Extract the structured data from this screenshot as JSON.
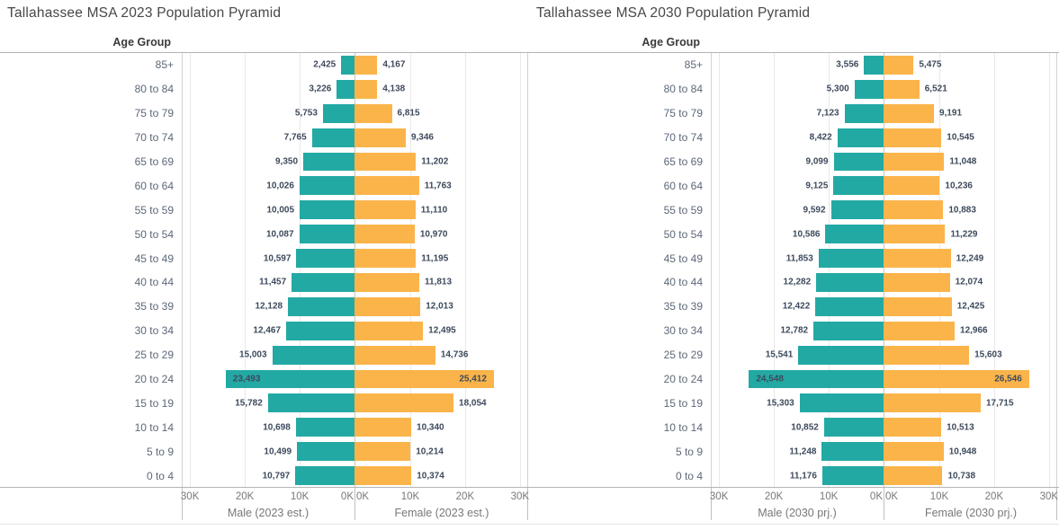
{
  "style": {
    "male_color": "#23A9A4",
    "female_color": "#FBB44A",
    "title_color": "#474747"
  },
  "chart_data": [
    {
      "type": "bar",
      "subtype": "population_pyramid",
      "title": "Tallahassee MSA 2023 Population Pyramid",
      "col_header": "Age Group",
      "categories": [
        "85+",
        "80 to 84",
        "75 to 79",
        "70 to 74",
        "65 to 69",
        "60 to 64",
        "55 to 59",
        "50 to 54",
        "45 to 49",
        "40 to 44",
        "35 to 39",
        "30 to 34",
        "25 to 29",
        "20 to 24",
        "15 to 19",
        "10 to 14",
        "5 to 9",
        "0 to 4"
      ],
      "series": [
        {
          "name": "Male (2023 est.)",
          "side": "left",
          "values": [
            2425,
            3226,
            5753,
            7765,
            9350,
            10026,
            10005,
            10087,
            10597,
            11457,
            12128,
            12467,
            15003,
            23493,
            15782,
            10698,
            10499,
            10797
          ]
        },
        {
          "name": "Female (2023 est.)",
          "side": "right",
          "values": [
            4167,
            4138,
            6815,
            9346,
            11202,
            11763,
            11110,
            10970,
            11195,
            11813,
            12013,
            12495,
            14736,
            25412,
            18054,
            10340,
            10214,
            10374
          ]
        }
      ],
      "xlabel_left": "Male (2023 est.)",
      "xlabel_right": "Female (2023 est.)",
      "x_ticks_left": [
        "30K",
        "20K",
        "10K",
        "0K"
      ],
      "x_ticks_right": [
        "0K",
        "10K",
        "20K",
        "30K"
      ],
      "xlim": [
        0,
        31500
      ],
      "tick_interval": 10000,
      "grid": true,
      "legend": "none"
    },
    {
      "type": "bar",
      "subtype": "population_pyramid",
      "title": "Tallahassee MSA 2030 Population Pyramid",
      "col_header": "Age Group",
      "categories": [
        "85+",
        "80 to 84",
        "75 to 79",
        "70 to 74",
        "65 to 69",
        "60 to 64",
        "55 to 59",
        "50 to 54",
        "45 to 49",
        "40 to 44",
        "35 to 39",
        "30 to 34",
        "25 to 29",
        "20 to 24",
        "15 to 19",
        "10 to 14",
        "5 to 9",
        "0 to 4"
      ],
      "series": [
        {
          "name": "Male (2030 prj.)",
          "side": "left",
          "values": [
            3556,
            5300,
            7123,
            8422,
            9099,
            9125,
            9592,
            10586,
            11853,
            12282,
            12422,
            12782,
            15541,
            24548,
            15303,
            10852,
            11248,
            11176
          ]
        },
        {
          "name": "Female (2030 prj.)",
          "side": "right",
          "values": [
            5475,
            6521,
            9191,
            10545,
            11048,
            10236,
            10883,
            11229,
            12249,
            12074,
            12425,
            12966,
            15603,
            26546,
            17715,
            10513,
            10948,
            10738
          ]
        }
      ],
      "xlabel_left": "Male (2030 prj.)",
      "xlabel_right": "Female (2030 prj.)",
      "x_ticks_left": [
        "30K",
        "20K",
        "10K",
        "0K"
      ],
      "x_ticks_right": [
        "0K",
        "10K",
        "20K",
        "30K"
      ],
      "xlim": [
        0,
        31500
      ],
      "tick_interval": 10000,
      "grid": true,
      "legend": "none"
    }
  ]
}
